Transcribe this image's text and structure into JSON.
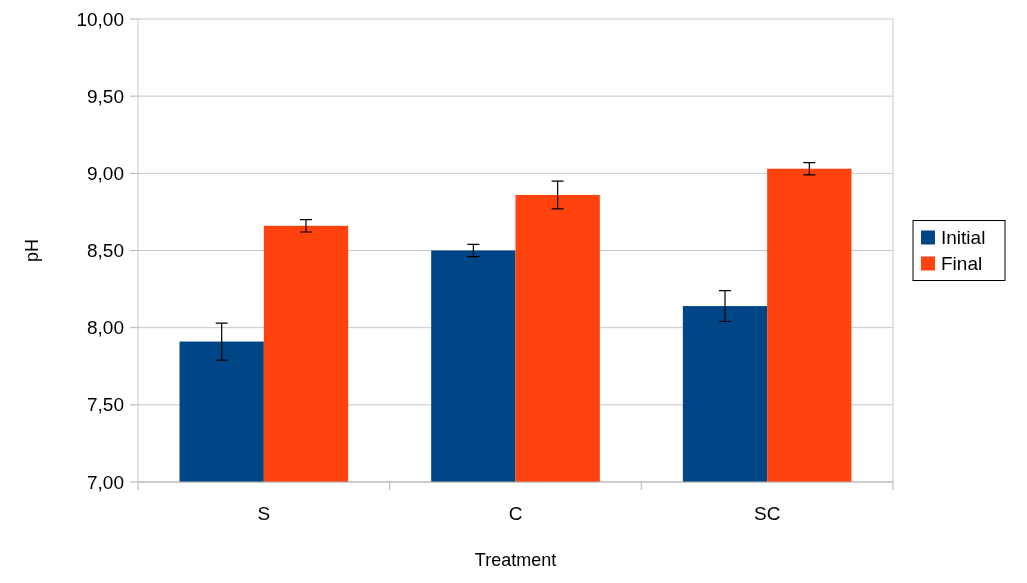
{
  "chart_data": {
    "type": "bar",
    "xlabel": "Treatment",
    "ylabel": "pH",
    "categories": [
      "S",
      "C",
      "SC"
    ],
    "series": [
      {
        "name": "Initial",
        "color": "#004586",
        "values": [
          7.91,
          8.5,
          8.14
        ],
        "errors": [
          0.12,
          0.04,
          0.1
        ]
      },
      {
        "name": "Final",
        "color": "#ff420e",
        "values": [
          8.66,
          8.86,
          9.03
        ],
        "errors": [
          0.04,
          0.09,
          0.04
        ]
      }
    ],
    "ylim": [
      7,
      10
    ],
    "yticks": [
      {
        "value": 7,
        "label": "7,00"
      },
      {
        "value": 7.5,
        "label": "7,50"
      },
      {
        "value": 8,
        "label": "8,00"
      },
      {
        "value": 8.5,
        "label": "8,50"
      },
      {
        "value": 9,
        "label": "9,00"
      },
      {
        "value": 9.5,
        "label": "9,50"
      },
      {
        "value": 10,
        "label": "10,00"
      }
    ],
    "grid": "y",
    "legend": "right"
  }
}
